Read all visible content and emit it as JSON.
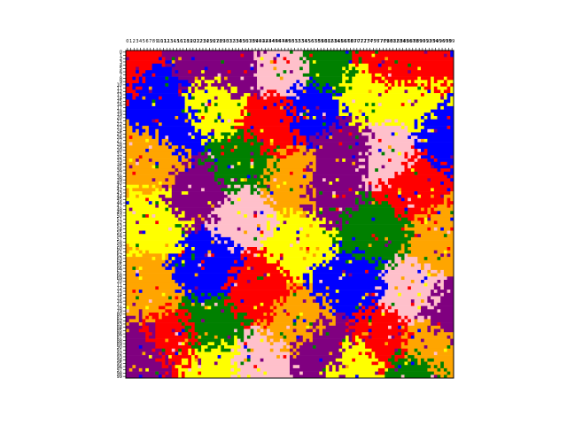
{
  "chart_data": {
    "type": "heatmap",
    "title": "",
    "xlabel": "",
    "ylabel": "",
    "rows": 100,
    "cols": 100,
    "x_tick_labels": [
      "0",
      "1",
      "2",
      "3",
      "4",
      "5",
      "6",
      "7",
      "8",
      "9",
      "10",
      "11",
      "12",
      "13",
      "14",
      "15",
      "16",
      "17",
      "18",
      "19",
      "20",
      "21",
      "22",
      "23",
      "24",
      "25",
      "26",
      "27",
      "28",
      "29",
      "30",
      "31",
      "32",
      "33",
      "34",
      "35",
      "36",
      "37",
      "38",
      "39",
      "40",
      "41",
      "42",
      "43",
      "44",
      "45",
      "46",
      "47",
      "48",
      "49",
      "50",
      "51",
      "52",
      "53",
      "54",
      "55",
      "56",
      "57",
      "58",
      "59",
      "60",
      "61",
      "62",
      "63",
      "64",
      "65",
      "66",
      "67",
      "68",
      "69",
      "70",
      "71",
      "72",
      "73",
      "74",
      "75",
      "76",
      "77",
      "78",
      "79",
      "80",
      "81",
      "82",
      "83",
      "84",
      "85",
      "86",
      "87",
      "88",
      "89",
      "90",
      "91",
      "92",
      "93",
      "94",
      "95",
      "96",
      "97",
      "98",
      "99"
    ],
    "y_tick_labels": [
      "0",
      "1",
      "2",
      "3",
      "4",
      "5",
      "6",
      "7",
      "8",
      "9",
      "10",
      "11",
      "12",
      "13",
      "14",
      "15",
      "16",
      "17",
      "18",
      "19",
      "20",
      "21",
      "22",
      "23",
      "24",
      "25",
      "26",
      "27",
      "28",
      "29",
      "30",
      "31",
      "32",
      "33",
      "34",
      "35",
      "36",
      "37",
      "38",
      "39",
      "40",
      "41",
      "42",
      "43",
      "44",
      "45",
      "46",
      "47",
      "48",
      "49",
      "50",
      "51",
      "52",
      "53",
      "54",
      "55",
      "56",
      "57",
      "58",
      "59",
      "60",
      "61",
      "62",
      "63",
      "64",
      "65",
      "66",
      "67",
      "68",
      "69",
      "70",
      "71",
      "72",
      "73",
      "74",
      "75",
      "76",
      "77",
      "78",
      "79",
      "80",
      "81",
      "82",
      "83",
      "84",
      "85",
      "86",
      "87",
      "88",
      "89",
      "90",
      "91",
      "92",
      "93",
      "94",
      "95",
      "96",
      "97",
      "98",
      "99"
    ],
    "x_axis_position": "top",
    "y_axis_position": "left",
    "grid": false,
    "legend": "none",
    "palette": [
      "#ff0000",
      "#0000ff",
      "#008000",
      "#ffff00",
      "#ffa500",
      "#800080",
      "#ffc0cb"
    ],
    "regions": [
      {
        "x": 2,
        "y": 3,
        "c": 0
      },
      {
        "x": 10,
        "y": 12,
        "c": 1
      },
      {
        "x": 20,
        "y": 3,
        "c": 5
      },
      {
        "x": 26,
        "y": 16,
        "c": 3
      },
      {
        "x": 33,
        "y": 5,
        "c": 5
      },
      {
        "x": 46,
        "y": 4,
        "c": 6
      },
      {
        "x": 62,
        "y": 4,
        "c": 2
      },
      {
        "x": 78,
        "y": 3,
        "c": 0
      },
      {
        "x": 90,
        "y": 5,
        "c": 0
      },
      {
        "x": 57,
        "y": 18,
        "c": 1
      },
      {
        "x": 44,
        "y": 22,
        "c": 0
      },
      {
        "x": 72,
        "y": 12,
        "c": 3
      },
      {
        "x": 89,
        "y": 14,
        "c": 3
      },
      {
        "x": 97,
        "y": 24,
        "c": 1
      },
      {
        "x": 7,
        "y": 32,
        "c": 4
      },
      {
        "x": 35,
        "y": 34,
        "c": 2
      },
      {
        "x": 21,
        "y": 44,
        "c": 5
      },
      {
        "x": 50,
        "y": 40,
        "c": 4
      },
      {
        "x": 62,
        "y": 42,
        "c": 5
      },
      {
        "x": 86,
        "y": 40,
        "c": 0
      },
      {
        "x": 79,
        "y": 32,
        "c": 6
      },
      {
        "x": 9,
        "y": 52,
        "c": 3
      },
      {
        "x": 35,
        "y": 50,
        "c": 6
      },
      {
        "x": 52,
        "y": 58,
        "c": 3
      },
      {
        "x": 75,
        "y": 54,
        "c": 2
      },
      {
        "x": 96,
        "y": 58,
        "c": 4
      },
      {
        "x": 24,
        "y": 65,
        "c": 1
      },
      {
        "x": 40,
        "y": 72,
        "c": 0
      },
      {
        "x": 67,
        "y": 70,
        "c": 1
      },
      {
        "x": 88,
        "y": 74,
        "c": 6
      },
      {
        "x": 97,
        "y": 80,
        "c": 5
      },
      {
        "x": 5,
        "y": 72,
        "c": 4
      },
      {
        "x": 25,
        "y": 84,
        "c": 2
      },
      {
        "x": 52,
        "y": 82,
        "c": 4
      },
      {
        "x": 60,
        "y": 90,
        "c": 5
      },
      {
        "x": 78,
        "y": 88,
        "c": 0
      },
      {
        "x": 92,
        "y": 90,
        "c": 4
      },
      {
        "x": 4,
        "y": 93,
        "c": 5
      },
      {
        "x": 14,
        "y": 88,
        "c": 0
      },
      {
        "x": 26,
        "y": 96,
        "c": 3
      },
      {
        "x": 40,
        "y": 96,
        "c": 6
      },
      {
        "x": 70,
        "y": 97,
        "c": 3
      },
      {
        "x": 88,
        "y": 98,
        "c": 2
      },
      {
        "x": 14,
        "y": 22,
        "c": 1
      },
      {
        "x": 66,
        "y": 30,
        "c": 5
      }
    ],
    "noise_fraction": 0.3
  }
}
